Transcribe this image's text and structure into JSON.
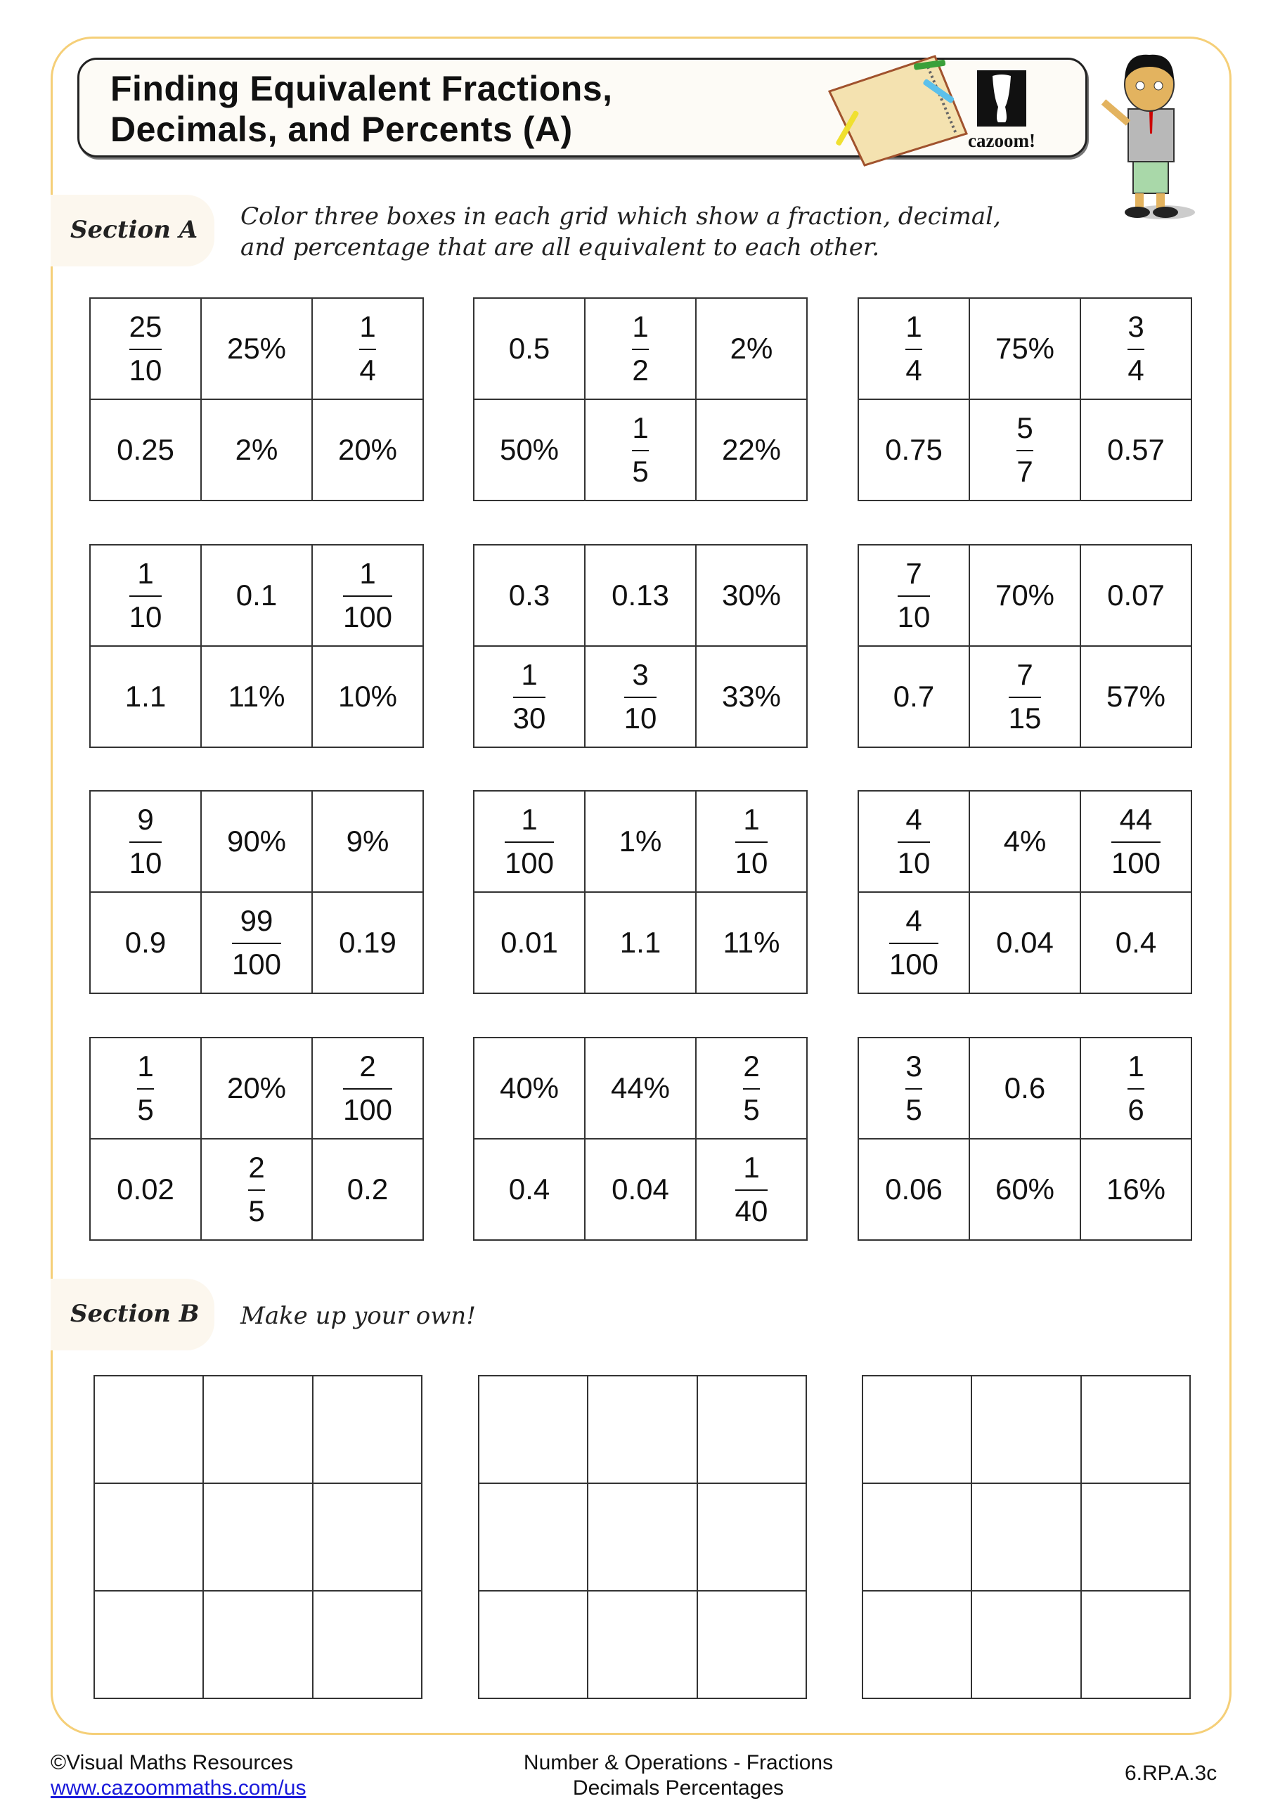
{
  "header": {
    "title_line1": "Finding Equivalent Fractions,",
    "title_line2": "Decimals, and Percents (A)",
    "logo": "cazoom!"
  },
  "colors": {
    "frame": "#f5cf78",
    "section_pill": "#fcf7ee",
    "link": "#1a1adb"
  },
  "section_a": {
    "label": "Section A",
    "instruction_line1": "Color three boxes in each grid which show a fraction, decimal,",
    "instruction_line2": "and percentage that are all equivalent to each other.",
    "grids": [
      [
        [
          {
            "n": "25",
            "d": "10"
          },
          {
            "t": "25%"
          },
          {
            "n": "1",
            "d": "4"
          }
        ],
        [
          {
            "t": "0.25"
          },
          {
            "t": "2%"
          },
          {
            "t": "20%"
          }
        ]
      ],
      [
        [
          {
            "t": "0.5"
          },
          {
            "n": "1",
            "d": "2"
          },
          {
            "t": "2%"
          }
        ],
        [
          {
            "t": "50%"
          },
          {
            "n": "1",
            "d": "5"
          },
          {
            "t": "22%"
          }
        ]
      ],
      [
        [
          {
            "n": "1",
            "d": "4"
          },
          {
            "t": "75%"
          },
          {
            "n": "3",
            "d": "4"
          }
        ],
        [
          {
            "t": "0.75"
          },
          {
            "n": "5",
            "d": "7"
          },
          {
            "t": "0.57"
          }
        ]
      ],
      [
        [
          {
            "n": "1",
            "d": "10"
          },
          {
            "t": "0.1"
          },
          {
            "n": "1",
            "d": "100"
          }
        ],
        [
          {
            "t": "1.1"
          },
          {
            "t": "11%"
          },
          {
            "t": "10%"
          }
        ]
      ],
      [
        [
          {
            "t": "0.3"
          },
          {
            "t": "0.13"
          },
          {
            "t": "30%"
          }
        ],
        [
          {
            "n": "1",
            "d": "30"
          },
          {
            "n": "3",
            "d": "10"
          },
          {
            "t": "33%"
          }
        ]
      ],
      [
        [
          {
            "n": "7",
            "d": "10"
          },
          {
            "t": "70%"
          },
          {
            "t": "0.07"
          }
        ],
        [
          {
            "t": "0.7"
          },
          {
            "n": "7",
            "d": "15"
          },
          {
            "t": "57%"
          }
        ]
      ],
      [
        [
          {
            "n": "9",
            "d": "10"
          },
          {
            "t": "90%"
          },
          {
            "t": "9%"
          }
        ],
        [
          {
            "t": "0.9"
          },
          {
            "n": "99",
            "d": "100"
          },
          {
            "t": "0.19"
          }
        ]
      ],
      [
        [
          {
            "n": "1",
            "d": "100"
          },
          {
            "t": "1%"
          },
          {
            "n": "1",
            "d": "10"
          }
        ],
        [
          {
            "t": "0.01"
          },
          {
            "t": "1.1"
          },
          {
            "t": "11%"
          }
        ]
      ],
      [
        [
          {
            "n": "4",
            "d": "10"
          },
          {
            "t": "4%"
          },
          {
            "n": "44",
            "d": "100"
          }
        ],
        [
          {
            "n": "4",
            "d": "100"
          },
          {
            "t": "0.04"
          },
          {
            "t": "0.4"
          }
        ]
      ],
      [
        [
          {
            "n": "1",
            "d": "5"
          },
          {
            "t": "20%"
          },
          {
            "n": "2",
            "d": "100"
          }
        ],
        [
          {
            "t": "0.02"
          },
          {
            "n": "2",
            "d": "5"
          },
          {
            "t": "0.2"
          }
        ]
      ],
      [
        [
          {
            "t": "40%"
          },
          {
            "t": "44%"
          },
          {
            "n": "2",
            "d": "5"
          }
        ],
        [
          {
            "t": "0.4"
          },
          {
            "t": "0.04"
          },
          {
            "n": "1",
            "d": "40"
          }
        ]
      ],
      [
        [
          {
            "n": "3",
            "d": "5"
          },
          {
            "t": "0.6"
          },
          {
            "n": "1",
            "d": "6"
          }
        ],
        [
          {
            "t": "0.06"
          },
          {
            "t": "60%"
          },
          {
            "t": "16%"
          }
        ]
      ]
    ]
  },
  "section_b": {
    "label": "Section B",
    "instruction": "Make up your own!",
    "empty_grids": 3
  },
  "footer": {
    "copyright": "©Visual Maths Resources",
    "link": "www.cazoommaths.com/us",
    "topic_line1": "Number & Operations - Fractions",
    "topic_line2": "Decimals Percentages",
    "standard": "6.RP.A.3c"
  }
}
